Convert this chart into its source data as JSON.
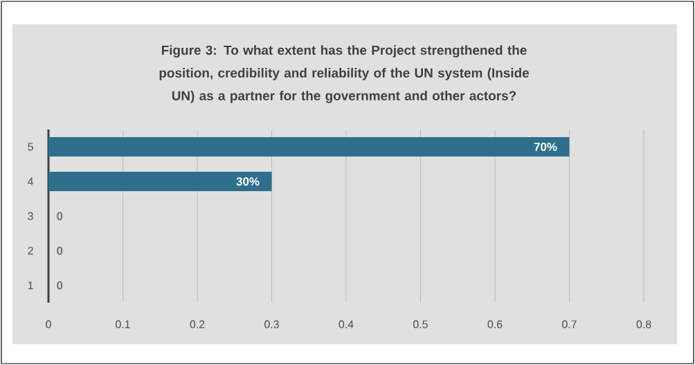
{
  "chart_data": {
    "type": "bar",
    "orientation": "horizontal",
    "title": "Figure 3: To what extent has the Project strengthened the position, credibility and reliability of the UN system (Inside UN) as a partner for the government and other actors?",
    "categories": [
      "5",
      "4",
      "3",
      "2",
      "1"
    ],
    "values": [
      0.7,
      0.3,
      0,
      0,
      0
    ],
    "value_labels": [
      "70%",
      "30%",
      "0",
      "0",
      "0"
    ],
    "color": "#2f6f8c",
    "xlim": [
      0,
      0.8
    ],
    "xticks": [
      0,
      0.1,
      0.2,
      0.3,
      0.4,
      0.5,
      0.6,
      0.7,
      0.8
    ],
    "grid": "x"
  }
}
